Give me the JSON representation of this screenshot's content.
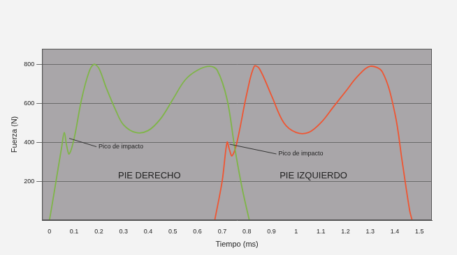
{
  "chart_data": {
    "type": "line",
    "x_label": "Tiempo (ms)",
    "y_label": "Fuerza (N)",
    "xlim": [
      -0.03,
      1.55
    ],
    "xticks": [
      0,
      0.1,
      0.2,
      0.3,
      0.4,
      0.5,
      0.6,
      0.7,
      0.8,
      0.9,
      1,
      1.1,
      1.2,
      1.3,
      1.4,
      1.5
    ],
    "ylim": [
      0,
      880
    ],
    "yticks": [
      200,
      400,
      600,
      800
    ],
    "grid": true,
    "series": [
      {
        "name": "PIE DERECHO",
        "color": "#7fb548",
        "x": [
          0,
          0.02,
          0.05,
          0.06,
          0.07,
          0.08,
          0.1,
          0.13,
          0.16,
          0.18,
          0.2,
          0.23,
          0.27,
          0.3,
          0.35,
          0.4,
          0.45,
          0.5,
          0.55,
          0.6,
          0.65,
          0.68,
          0.72,
          0.75,
          0.78,
          0.81
        ],
        "values": [
          0,
          150,
          380,
          450,
          380,
          340,
          420,
          620,
          760,
          800,
          780,
          680,
          560,
          490,
          450,
          460,
          520,
          620,
          720,
          770,
          790,
          770,
          620,
          380,
          170,
          0
        ]
      },
      {
        "name": "PIE IZQUIERDO",
        "color": "#ef5532",
        "x": [
          0.67,
          0.7,
          0.72,
          0.73,
          0.74,
          0.76,
          0.8,
          0.83,
          0.85,
          0.9,
          0.95,
          1,
          1.05,
          1.1,
          1.15,
          1.2,
          1.25,
          1.3,
          1.35,
          1.4,
          1.43,
          1.46,
          1.47
        ],
        "values": [
          0,
          200,
          400,
          360,
          330,
          400,
          650,
          790,
          780,
          640,
          500,
          450,
          450,
          500,
          580,
          660,
          740,
          790,
          760,
          550,
          300,
          50,
          0
        ]
      }
    ],
    "annotations": [
      {
        "text": "Pico de impacto",
        "x": 0.08,
        "y": 420
      },
      {
        "text": "Pico de impacto",
        "x": 0.73,
        "y": 390
      }
    ]
  }
}
